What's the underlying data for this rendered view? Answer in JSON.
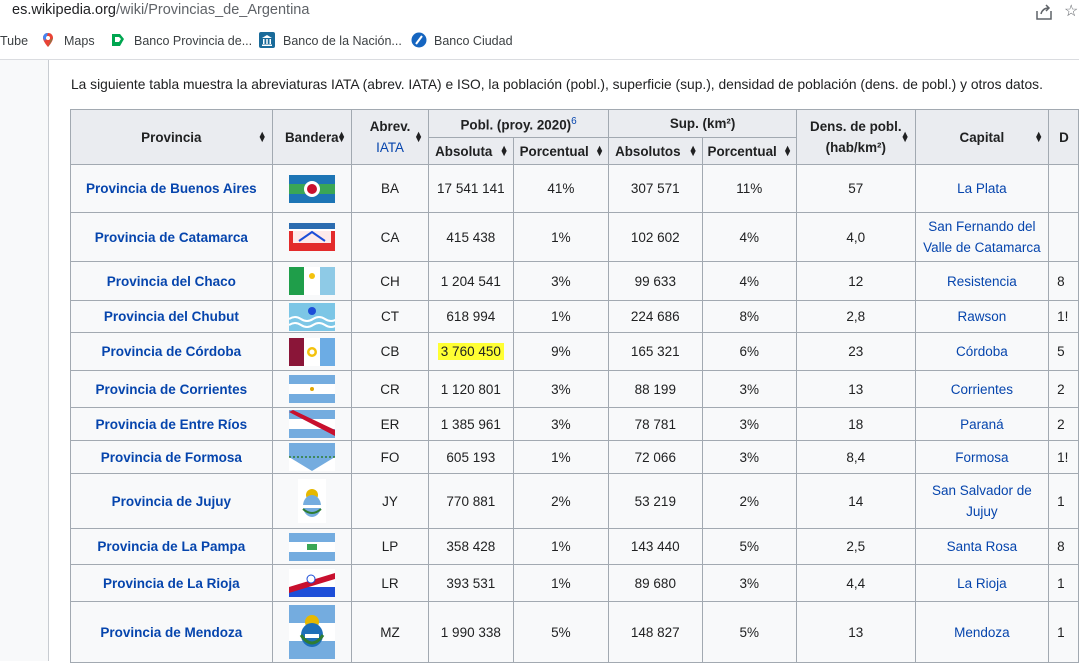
{
  "browser": {
    "url_host": "es.wikipedia.org",
    "url_path": "/wiki/Provincias_de_Argentina",
    "bookmarks": [
      {
        "label": "Tube",
        "icon": "youtube-icon"
      },
      {
        "label": "Maps",
        "icon": "maps-pin-icon"
      },
      {
        "label": "Banco Provincia de...",
        "icon": "bank-provincia-icon"
      },
      {
        "label": "Banco de la Nación...",
        "icon": "bank-nacion-icon"
      },
      {
        "label": "Banco Ciudad",
        "icon": "bank-ciudad-icon"
      }
    ]
  },
  "intro": "La siguiente tabla muestra la abreviaturas IATA (abrev. IATA) e ISO, la población (pobl.), superficie (sup.), densidad de población (dens. de pobl.) y otros datos.",
  "table": {
    "headers": {
      "provincia": "Provincia",
      "bandera": "Bandera",
      "abrev": "Abrev.",
      "abrev_link": "IATA",
      "pobl": "Pobl. (proy. 2020)",
      "pobl_ref": "6",
      "sup": "Sup. (km²)",
      "dens1": "Dens. de pobl.",
      "dens2": "(hab/km²)",
      "capital": "Capital",
      "next": "D",
      "absoluta": "Absoluta",
      "porcentual": "Porcentual",
      "absolutos": "Absolutos",
      "porcentual2": "Porcentual"
    },
    "rows": [
      {
        "prov": "Provincia de Buenos Aires",
        "flag": "flag-buenos-aires",
        "abrev": "BA",
        "pobl": "17 541 141",
        "pobl_pct": "41%",
        "sup": "307 571",
        "sup_pct": "11%",
        "dens": "57",
        "cap": "La Plata",
        "next": ""
      },
      {
        "prov": "Provincia de Catamarca",
        "flag": "flag-catamarca",
        "abrev": "CA",
        "pobl": "415 438",
        "pobl_pct": "1%",
        "sup": "102 602",
        "sup_pct": "4%",
        "dens": "4,0",
        "cap": "San Fernando del Valle de Catamarca",
        "next": ""
      },
      {
        "prov": "Provincia del Chaco",
        "flag": "flag-chaco",
        "abrev": "CH",
        "pobl": "1 204 541",
        "pobl_pct": "3%",
        "sup": "99 633",
        "sup_pct": "4%",
        "dens": "12",
        "cap": "Resistencia",
        "next": "8"
      },
      {
        "prov": "Provincia del Chubut",
        "flag": "flag-chubut",
        "abrev": "CT",
        "pobl": "618 994",
        "pobl_pct": "1%",
        "sup": "224 686",
        "sup_pct": "8%",
        "dens": "2,8",
        "cap": "Rawson",
        "next": "1!"
      },
      {
        "prov": "Provincia de Córdoba",
        "flag": "flag-cordoba",
        "abrev": "CB",
        "pobl": "3 760 450",
        "pobl_pct": "9%",
        "sup": "165 321",
        "sup_pct": "6%",
        "dens": "23",
        "cap": "Córdoba",
        "next": "5"
      },
      {
        "prov": "Provincia de Corrientes",
        "flag": "flag-corrientes",
        "abrev": "CR",
        "pobl": "1 120 801",
        "pobl_pct": "3%",
        "sup": "88 199",
        "sup_pct": "3%",
        "dens": "13",
        "cap": "Corrientes",
        "next": "2"
      },
      {
        "prov": "Provincia de Entre Ríos",
        "flag": "flag-entre-rios",
        "abrev": "ER",
        "pobl": "1 385 961",
        "pobl_pct": "3%",
        "sup": "78 781",
        "sup_pct": "3%",
        "dens": "18",
        "cap": "Paraná",
        "next": "2"
      },
      {
        "prov": "Provincia de Formosa",
        "flag": "flag-formosa",
        "abrev": "FO",
        "pobl": "605 193",
        "pobl_pct": "1%",
        "sup": "72 066",
        "sup_pct": "3%",
        "dens": "8,4",
        "cap": "Formosa",
        "next": "1!"
      },
      {
        "prov": "Provincia de Jujuy",
        "flag": "flag-jujuy",
        "abrev": "JY",
        "pobl": "770 881",
        "pobl_pct": "2%",
        "sup": "53 219",
        "sup_pct": "2%",
        "dens": "14",
        "cap": "San Salvador de Jujuy",
        "next": "1"
      },
      {
        "prov": "Provincia de La Pampa",
        "flag": "flag-la-pampa",
        "abrev": "LP",
        "pobl": "358 428",
        "pobl_pct": "1%",
        "sup": "143 440",
        "sup_pct": "5%",
        "dens": "2,5",
        "cap": "Santa Rosa",
        "next": "8"
      },
      {
        "prov": "Provincia de La Rioja",
        "flag": "flag-la-rioja",
        "abrev": "LR",
        "pobl": "393 531",
        "pobl_pct": "1%",
        "sup": "89 680",
        "sup_pct": "3%",
        "dens": "4,4",
        "cap": "La Rioja",
        "next": "1"
      },
      {
        "prov": "Provincia de Mendoza",
        "flag": "flag-mendoza",
        "abrev": "MZ",
        "pobl": "1 990 338",
        "pobl_pct": "5%",
        "sup": "148 827",
        "sup_pct": "5%",
        "dens": "13",
        "cap": "Mendoza",
        "next": "1"
      }
    ]
  }
}
